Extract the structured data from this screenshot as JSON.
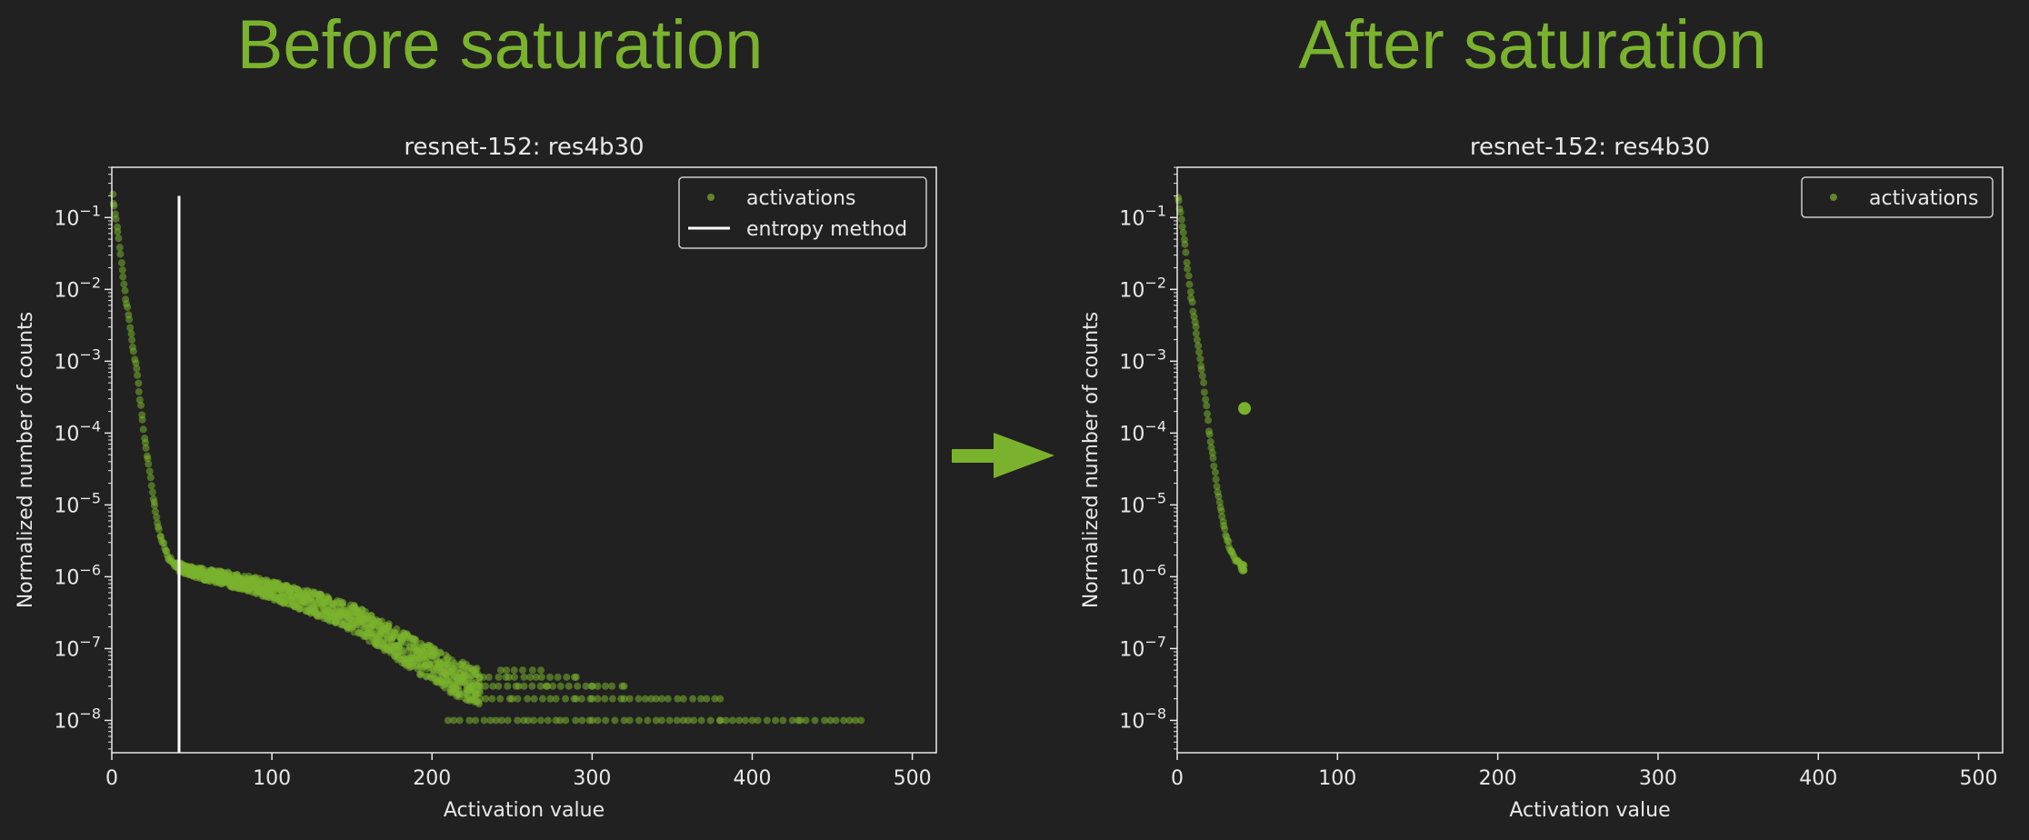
{
  "headings": {
    "before": "Before saturation",
    "after": "After saturation"
  },
  "colors": {
    "background": "#212121",
    "accent": "#7ab22e",
    "axes": "#e8e8e8"
  },
  "arrow_icon": "right-arrow-icon",
  "chart_data": [
    {
      "type": "scatter",
      "title": "resnet-152: res4b30",
      "xlabel": "Activation value",
      "ylabel": "Normalized number of counts",
      "xlim": [
        0,
        515
      ],
      "ylim_log10": [
        -8.45,
        -0.3
      ],
      "yscale": "log",
      "xticks": [
        0,
        100,
        200,
        300,
        400,
        500
      ],
      "yticks_exp": [
        -1,
        -2,
        -3,
        -4,
        -5,
        -6,
        -7,
        -8
      ],
      "legend": {
        "position": "top-right",
        "entries": [
          "activations",
          "entropy method"
        ]
      },
      "entropy_threshold": {
        "x": 42,
        "y_top": 0.2
      },
      "series": [
        {
          "name": "activations",
          "curve": [
            [
              0.5,
              0.2
            ],
            [
              2,
              0.12
            ],
            [
              4,
              0.06
            ],
            [
              6,
              0.025
            ],
            [
              8,
              0.01
            ],
            [
              10,
              0.005
            ],
            [
              12,
              0.0025
            ],
            [
              14,
              0.0012
            ],
            [
              16,
              0.0006
            ],
            [
              18,
              0.00025
            ],
            [
              20,
              0.0001
            ],
            [
              22,
              5e-05
            ],
            [
              24,
              2.5e-05
            ],
            [
              26,
              1.2e-05
            ],
            [
              28,
              7e-06
            ],
            [
              30,
              4e-06
            ],
            [
              33,
              2.5e-06
            ],
            [
              36,
              1.8e-06
            ],
            [
              40,
              1.4e-06
            ],
            [
              45,
              1.3e-06
            ],
            [
              50,
              1.2e-06
            ],
            [
              60,
              1.05e-06
            ],
            [
              70,
              9.5e-07
            ],
            [
              80,
              8.5e-07
            ],
            [
              90,
              7.5e-07
            ],
            [
              100,
              6.5e-07
            ],
            [
              110,
              5.5e-07
            ],
            [
              120,
              4.7e-07
            ],
            [
              130,
              4e-07
            ],
            [
              140,
              3.3e-07
            ],
            [
              150,
              2.7e-07
            ],
            [
              160,
              2e-07
            ],
            [
              170,
              1.5e-07
            ],
            [
              180,
              1.1e-07
            ],
            [
              190,
              8e-08
            ],
            [
              200,
              6e-08
            ],
            [
              210,
              4.5e-08
            ],
            [
              220,
              3.5e-08
            ],
            [
              230,
              2.8e-08
            ]
          ],
          "tail": {
            "y": [
              5e-08,
              4e-08,
              3e-08,
              2e-08,
              1e-08
            ],
            "x": [
              [
                243,
                268
              ],
              [
                216,
                232,
                248,
                265,
                290
              ],
              [
                222,
                238,
                254,
                272,
                300,
                320
              ],
              [
                230,
                250,
                290,
                300,
                320,
                340,
                380
              ],
              [
                210,
                240,
                260,
                280,
                300,
                320,
                340,
                360,
                380,
                400,
                430,
                468
              ]
            ]
          }
        }
      ]
    },
    {
      "type": "scatter",
      "title": "resnet-152: res4b30",
      "xlabel": "Activation value",
      "ylabel": "Normalized number of counts",
      "xlim": [
        0,
        515
      ],
      "ylim_log10": [
        -8.45,
        -0.3
      ],
      "yscale": "log",
      "xticks": [
        0,
        100,
        200,
        300,
        400,
        500
      ],
      "yticks_exp": [
        -1,
        -2,
        -3,
        -4,
        -5,
        -6,
        -7,
        -8
      ],
      "legend": {
        "position": "top-right",
        "entries": [
          "activations"
        ]
      },
      "series": [
        {
          "name": "activations",
          "curve": [
            [
              0.5,
              0.2
            ],
            [
              2,
              0.12
            ],
            [
              4,
              0.06
            ],
            [
              6,
              0.025
            ],
            [
              8,
              0.01
            ],
            [
              10,
              0.005
            ],
            [
              12,
              0.0025
            ],
            [
              14,
              0.0012
            ],
            [
              16,
              0.0006
            ],
            [
              18,
              0.00025
            ],
            [
              20,
              0.0001
            ],
            [
              22,
              5e-05
            ],
            [
              24,
              2.5e-05
            ],
            [
              26,
              1.2e-05
            ],
            [
              28,
              7e-06
            ],
            [
              30,
              4e-06
            ],
            [
              33,
              2.5e-06
            ],
            [
              36,
              1.8e-06
            ],
            [
              40,
              1.4e-06
            ],
            [
              42,
              1.3e-06
            ]
          ],
          "saturated_point": [
            42,
            0.00022
          ]
        }
      ]
    }
  ]
}
